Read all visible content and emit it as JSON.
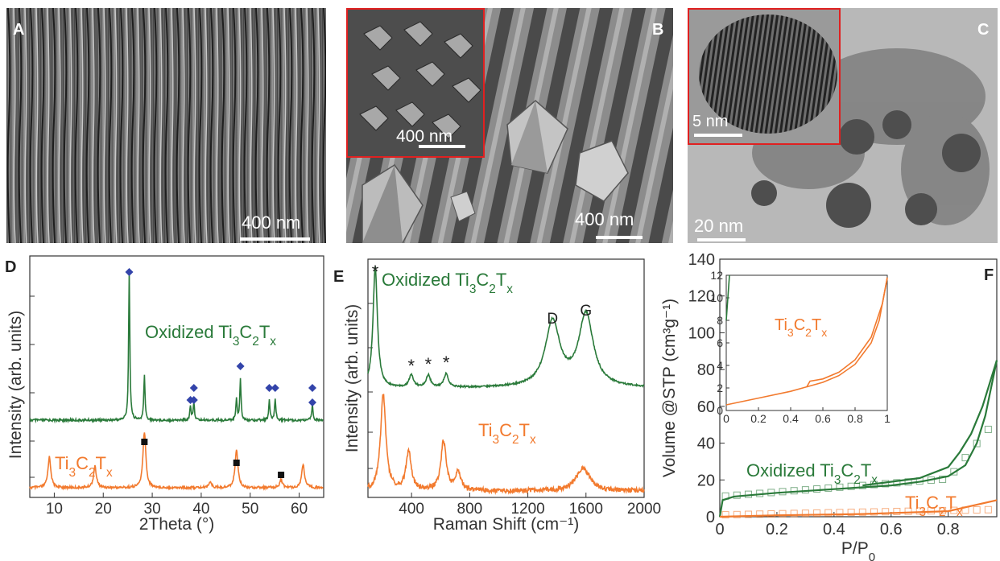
{
  "panels": {
    "A": {
      "label": "A",
      "scalebar": "400 nm"
    },
    "B": {
      "label": "B",
      "scalebar": "400 nm",
      "inset_scalebar": "400 nm"
    },
    "C": {
      "label": "C",
      "scalebar": "20 nm",
      "inset_scalebar": "5 nm"
    },
    "D": {
      "label": "D"
    },
    "E": {
      "label": "E"
    },
    "F": {
      "label": "F"
    }
  },
  "colors": {
    "oxidized": "#2a7a3a",
    "ti3c2": "#f27a2e",
    "marker_diamond": "#3344aa",
    "inset_border": "#e02020"
  },
  "chart_data": [
    {
      "type": "line",
      "panel": "D",
      "xlabel": "2Theta (°)",
      "ylabel": "Intensity (arb. units)",
      "xlim": [
        5,
        65
      ],
      "xticks": [
        10,
        20,
        30,
        40,
        50,
        60
      ],
      "series": [
        {
          "name": "Oxidized Ti3C2Tx",
          "label_parts": [
            "Oxidized Ti",
            "3",
            "C",
            "2",
            "T",
            "x"
          ],
          "peaks": [
            [
              25.3,
              1.0
            ],
            [
              28.4,
              0.3
            ],
            [
              37.8,
              0.1
            ],
            [
              38.5,
              0.12
            ],
            [
              47.2,
              0.15
            ],
            [
              48.0,
              0.28
            ],
            [
              53.9,
              0.13
            ],
            [
              55.1,
              0.15
            ],
            [
              62.7,
              0.11
            ]
          ]
        },
        {
          "name": "Ti3C2Tx",
          "label_parts": [
            "Ti",
            "3",
            "C",
            "2",
            "T",
            "x"
          ],
          "peaks": [
            [
              9.0,
              0.32
            ],
            [
              18.3,
              0.22
            ],
            [
              28.4,
              0.58
            ],
            [
              41.8,
              0.06
            ],
            [
              47.2,
              0.4
            ],
            [
              56.3,
              0.08
            ],
            [
              60.8,
              0.24
            ]
          ]
        }
      ],
      "markers": {
        "anatase_diamond_x": [
          25.3,
          37.8,
          38.5,
          48.0,
          53.9,
          55.1,
          62.7
        ],
        "square_x": [
          28.4,
          47.2,
          56.3
        ]
      }
    },
    {
      "type": "line",
      "panel": "E",
      "xlabel": "Raman Shift (cm⁻¹)",
      "ylabel": "Intensity (arb. units)",
      "xlim": [
        0,
        2000
      ],
      "xticks": [
        400,
        800,
        1200,
        1600,
        2000
      ],
      "series": [
        {
          "name": "Oxidized Ti3C2Tx",
          "label_parts": [
            "Oxidized Ti",
            "3",
            "C",
            "2",
            "T",
            "x"
          ],
          "peaks": [
            [
              150,
              1.0
            ],
            [
              398,
              0.1
            ],
            [
              515,
              0.1
            ],
            [
              638,
              0.11
            ],
            [
              1370,
              0.54
            ],
            [
              1600,
              0.6
            ]
          ]
        },
        {
          "name": "Ti3C2Tx",
          "label_parts": [
            "Ti",
            "3",
            "C",
            "2",
            "T",
            "x"
          ],
          "peaks": [
            [
              205,
              1.0
            ],
            [
              380,
              0.4
            ],
            [
              620,
              0.51
            ],
            [
              720,
              0.2
            ],
            [
              1580,
              0.24
            ]
          ]
        }
      ],
      "annotations": [
        "*",
        "*",
        "*",
        "*",
        "D",
        "G"
      ]
    },
    {
      "type": "line",
      "panel": "F",
      "xlabel": "P/P0",
      "ylabel": "Volume @STP (cm³g⁻¹)",
      "xlim": [
        0,
        0.97
      ],
      "ylim": [
        0,
        140
      ],
      "xticks": [
        0,
        0.2,
        0.4,
        0.6,
        0.8
      ],
      "yticks": [
        0,
        20,
        40,
        60,
        80,
        100,
        120,
        140
      ],
      "series": [
        {
          "name": "Oxidized Ti3C2Tx",
          "label_parts": [
            "Oxidized Ti",
            "3",
            "C",
            "2",
            "T",
            "x"
          ],
          "adsorption": [
            [
              0.0,
              0.0
            ],
            [
              0.01,
              9
            ],
            [
              0.05,
              11
            ],
            [
              0.2,
              13
            ],
            [
              0.4,
              15
            ],
            [
              0.6,
              17
            ],
            [
              0.7,
              19
            ],
            [
              0.8,
              22
            ],
            [
              0.86,
              28
            ],
            [
              0.9,
              40
            ],
            [
              0.93,
              55
            ],
            [
              0.97,
              85
            ]
          ],
          "desorption": [
            [
              0.97,
              85
            ],
            [
              0.95,
              75
            ],
            [
              0.92,
              60
            ],
            [
              0.88,
              45
            ],
            [
              0.84,
              35
            ],
            [
              0.8,
              27
            ],
            [
              0.7,
              21
            ],
            [
              0.5,
              17
            ]
          ]
        },
        {
          "name": "Ti3C2Tx",
          "label_parts": [
            "Ti",
            "3",
            "C",
            "2",
            "T",
            "x"
          ],
          "adsorption": [
            [
              0.0,
              0.0
            ],
            [
              0.2,
              0.8
            ],
            [
              0.5,
              1.5
            ],
            [
              0.8,
              3.0
            ],
            [
              0.97,
              9.0
            ]
          ]
        }
      ],
      "inset": {
        "xlim": [
          0,
          1
        ],
        "ylim": [
          0,
          12
        ],
        "xticks": [
          0,
          0.2,
          0.4,
          0.6,
          0.8,
          1
        ],
        "yticks": [
          0,
          2,
          4,
          6,
          8,
          10,
          12
        ],
        "label_parts": [
          "Ti",
          "3",
          "C",
          "2",
          "T",
          "x"
        ],
        "ads": [
          [
            0.0,
            0.5
          ],
          [
            0.2,
            1.1
          ],
          [
            0.4,
            1.7
          ],
          [
            0.5,
            2.1
          ],
          [
            0.52,
            2.6
          ],
          [
            0.6,
            2.8
          ],
          [
            0.7,
            3.4
          ],
          [
            0.8,
            4.5
          ],
          [
            0.9,
            6.5
          ],
          [
            0.97,
            9.5
          ],
          [
            1.0,
            11.8
          ]
        ],
        "des": [
          [
            1.0,
            11.8
          ],
          [
            0.95,
            8.0
          ],
          [
            0.9,
            6.0
          ],
          [
            0.8,
            4.1
          ],
          [
            0.7,
            3.1
          ],
          [
            0.6,
            2.5
          ],
          [
            0.5,
            2.1
          ]
        ]
      }
    }
  ]
}
